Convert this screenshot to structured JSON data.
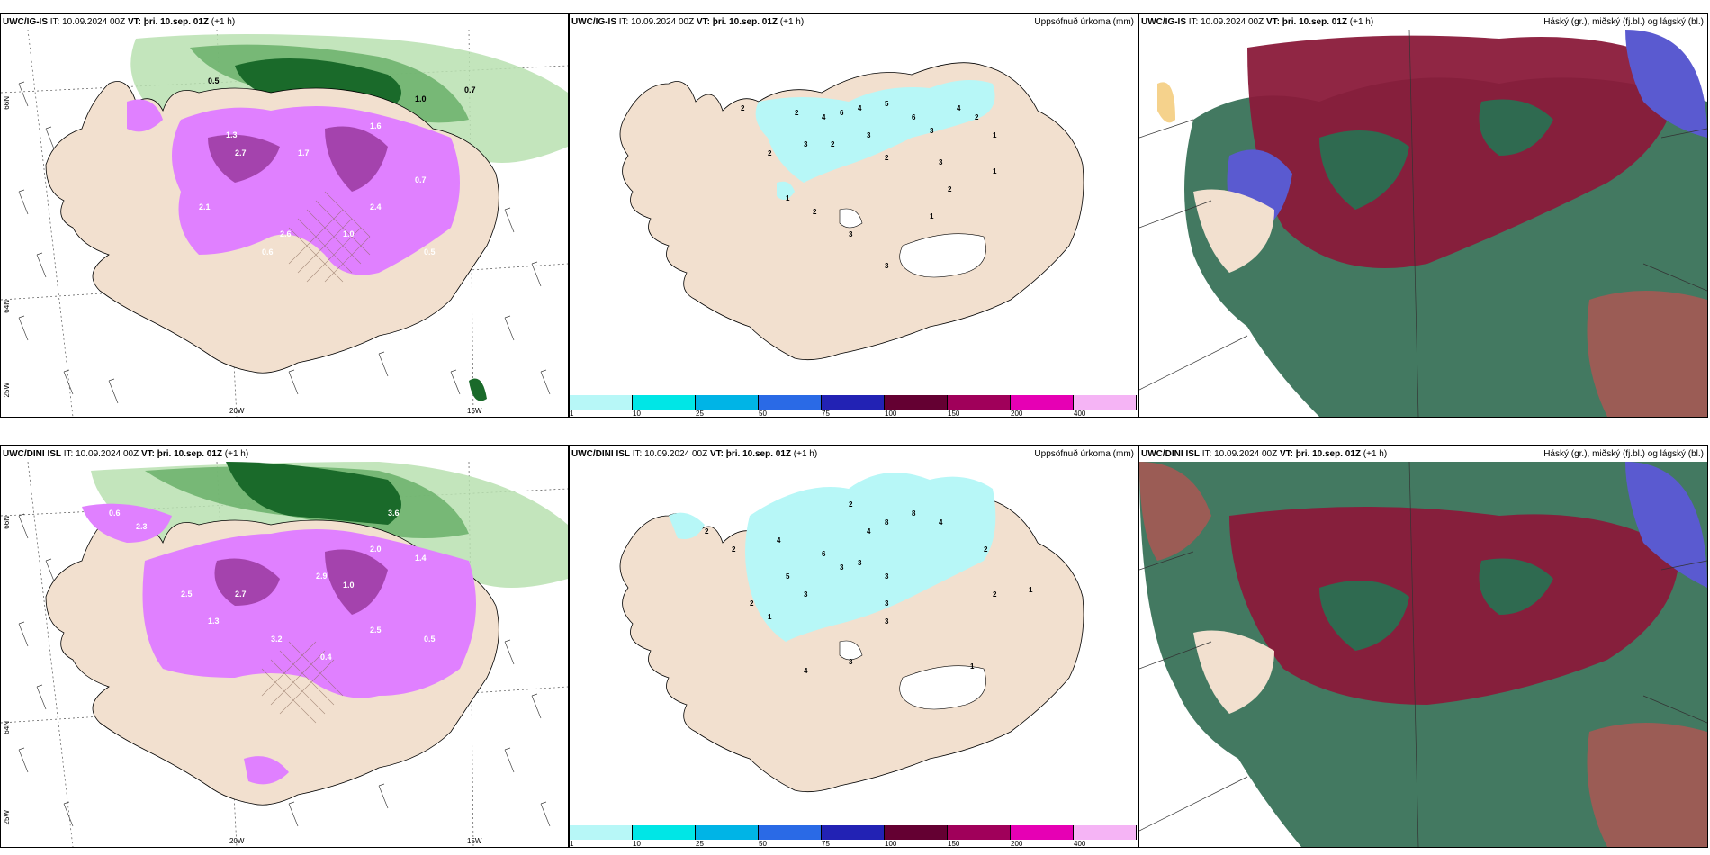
{
  "panels": [
    {
      "model": "UWC/IG-IS",
      "it_label": "IT:",
      "it": "10.09.2024 00Z",
      "vt_label": "VT:",
      "vt": "þri. 10.sep. 01Z",
      "lead": "(+1 h)",
      "right_title": ""
    },
    {
      "model": "UWC/IG-IS",
      "it_label": "IT:",
      "it": "10.09.2024 00Z",
      "vt_label": "VT:",
      "vt": "þri. 10.sep. 01Z",
      "lead": "(+1 h)",
      "right_title": "Uppsöfnuð úrkoma (mm)"
    },
    {
      "model": "UWC/IG-IS",
      "it_label": "IT:",
      "it": "10.09.2024 00Z",
      "vt_label": "VT:",
      "vt": "þri. 10.sep. 01Z",
      "lead": "(+1 h)",
      "right_title": "Háský (gr.), miðský (fj.bl.) og lágský (bl.)"
    },
    {
      "model": "UWC/DINI ISL",
      "it_label": "IT:",
      "it": "10.09.2024 00Z",
      "vt_label": "VT:",
      "vt": "þri. 10.sep. 01Z",
      "lead": "(+1 h)",
      "right_title": ""
    },
    {
      "model": "UWC/DINI ISL",
      "it_label": "IT:",
      "it": "10.09.2024 00Z",
      "vt_label": "VT:",
      "vt": "þri. 10.sep. 01Z",
      "lead": "(+1 h)",
      "right_title": "Uppsöfnuð úrkoma (mm)"
    },
    {
      "model": "UWC/DINI ISL",
      "it_label": "IT:",
      "it": "10.09.2024 00Z",
      "vt_label": "VT:",
      "vt": "þri. 10.sep. 01Z",
      "lead": "(+1 h)",
      "right_title": "Háský (gr.), miðský (fj.bl.) og lágský (bl.)"
    }
  ],
  "axis_labels": {
    "lat66": "66N",
    "lat64": "64N",
    "lon25": "25W",
    "lon20": "20W",
    "lon15": "15W"
  },
  "colorbar": {
    "colors": [
      "#b7f7f7",
      "#00e6e6",
      "#00b4e6",
      "#2a6ae6",
      "#2222b4",
      "#640032",
      "#a0005a",
      "#e600b4",
      "#f5b4f5"
    ],
    "labels": [
      "1",
      "10",
      "25",
      "50",
      "75",
      "100",
      "150",
      "200",
      "400"
    ]
  },
  "map_colors": {
    "land": "#f2e0cf",
    "sea": "#ffffff",
    "precip": "#b7f7f7",
    "lowcloud": "#2f6a50",
    "midcloud": "#5a5ad0",
    "highcloud": "#8a1a3a",
    "green_light": "#b8e0b0",
    "green_mid": "#6ab06a",
    "green_dark": "#1a6a2a",
    "magenta": "#e080ff",
    "magenta_dark": "#8a2a8a"
  },
  "rain_numbers_top": [
    "2",
    "2",
    "4",
    "6",
    "4",
    "5",
    "6",
    "3",
    "2",
    "4",
    "1",
    "2",
    "3",
    "2",
    "3",
    "2",
    "1",
    "3",
    "3",
    "2",
    "1",
    "3",
    "2",
    "1"
  ],
  "rain_numbers_bottom": [
    "2",
    "2",
    "4",
    "2",
    "4",
    "6",
    "8",
    "8",
    "4",
    "3",
    "2",
    "5",
    "3",
    "3",
    "3",
    "2",
    "1",
    "3",
    "3",
    "4",
    "2",
    "1",
    "1",
    "3"
  ],
  "precip_values_top": [
    "0.5",
    "0.7",
    "1.0",
    "1.6",
    "2.1",
    "2.7",
    "1.7",
    "0.7",
    "2.6",
    "0.5",
    "1.3",
    "2.4",
    "1.0",
    "0.6"
  ],
  "precip_values_bottom": [
    "0.6",
    "2.3",
    "2.5",
    "2.7",
    "2.9",
    "3.6",
    "1.4",
    "2.0",
    "1.3",
    "3.2",
    "1.0",
    "2.5",
    "0.5",
    "0.4"
  ]
}
